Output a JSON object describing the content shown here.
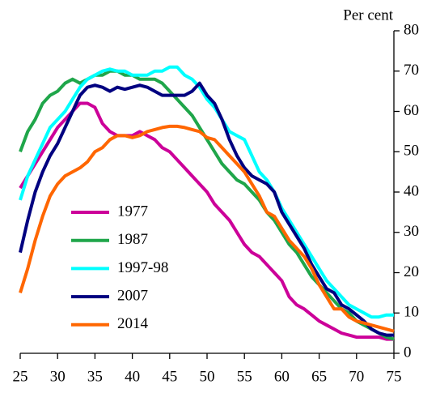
{
  "chart_data": {
    "type": "line",
    "y_label": "Per cent",
    "x": [
      25,
      26,
      27,
      28,
      29,
      30,
      31,
      32,
      33,
      34,
      35,
      36,
      37,
      38,
      39,
      40,
      41,
      42,
      43,
      44,
      45,
      46,
      47,
      48,
      49,
      50,
      51,
      52,
      53,
      54,
      55,
      56,
      57,
      58,
      59,
      60,
      61,
      62,
      63,
      64,
      65,
      66,
      67,
      68,
      69,
      70,
      71,
      72,
      73,
      74,
      75
    ],
    "series": [
      {
        "name": "1977",
        "color": "#cc0099",
        "values": [
          41,
          44,
          47,
          50,
          53,
          56,
          58,
          60,
          62,
          62,
          61,
          57,
          55,
          54,
          54,
          54,
          55,
          54,
          53,
          51,
          50,
          48,
          46,
          44,
          42,
          40,
          37,
          35,
          33,
          30,
          27,
          25,
          24,
          22,
          20,
          18,
          14,
          12,
          11,
          9.5,
          8,
          7,
          6,
          5,
          4.5,
          4,
          4,
          4,
          4,
          3.5,
          3.5
        ]
      },
      {
        "name": "1987",
        "color": "#1fa64a",
        "values": [
          50,
          55,
          58,
          62,
          64,
          65,
          67,
          68,
          67,
          68,
          69,
          69,
          70,
          70,
          69,
          69,
          68,
          68,
          68,
          67,
          65,
          63,
          61,
          59,
          56,
          53,
          50,
          47,
          45,
          43,
          42,
          40,
          38,
          35,
          33,
          30,
          27,
          25,
          22,
          19,
          17,
          15,
          13,
          11,
          10,
          8,
          7,
          6,
          5,
          4,
          3.5
        ]
      },
      {
        "name": "1997-98",
        "color": "#00ffff",
        "values": [
          38,
          44,
          48,
          52,
          56,
          58,
          60,
          63,
          66,
          68,
          69,
          70,
          70.5,
          70,
          70,
          69,
          69,
          69,
          70,
          70,
          71,
          71,
          69,
          68,
          66,
          63,
          61,
          58,
          55,
          54,
          53,
          49,
          45,
          43,
          40,
          36,
          33,
          30,
          27,
          24,
          21,
          18,
          16,
          14,
          12,
          11,
          10,
          9,
          9,
          9.5,
          9.5
        ]
      },
      {
        "name": "2007",
        "color": "#000080",
        "values": [
          25,
          33,
          40,
          45,
          49,
          52,
          56,
          60,
          64,
          66,
          66.5,
          66,
          65,
          66,
          65.5,
          66,
          66.5,
          66,
          65,
          64,
          64,
          64,
          64,
          65,
          67,
          64,
          62,
          58,
          53,
          49,
          46,
          44,
          43,
          42,
          40,
          35,
          32,
          29,
          26,
          22,
          19,
          16,
          15,
          12,
          11,
          9.5,
          8,
          6,
          5,
          4.5,
          4.5
        ]
      },
      {
        "name": "2014",
        "color": "#ff6600",
        "values": [
          15,
          21,
          28,
          34,
          39,
          42,
          44,
          45,
          46,
          47.5,
          50,
          51,
          53,
          54,
          54,
          53.5,
          54,
          55,
          55.5,
          56,
          56.3,
          56.3,
          56,
          55.5,
          55,
          53.5,
          53,
          51,
          49,
          47,
          45,
          42,
          39,
          35,
          34,
          31,
          28,
          26,
          24,
          21,
          17,
          14,
          11,
          11,
          9,
          8,
          7.5,
          7,
          6.5,
          6,
          5.5
        ]
      }
    ],
    "xlim": [
      25,
      75
    ],
    "xticks": [
      25,
      30,
      35,
      40,
      45,
      50,
      55,
      60,
      65,
      70,
      75
    ],
    "ylim": [
      0,
      80
    ],
    "yticks": [
      0,
      10,
      20,
      30,
      40,
      50,
      60,
      70,
      80
    ],
    "y_axis_side": "right",
    "grid": false
  }
}
